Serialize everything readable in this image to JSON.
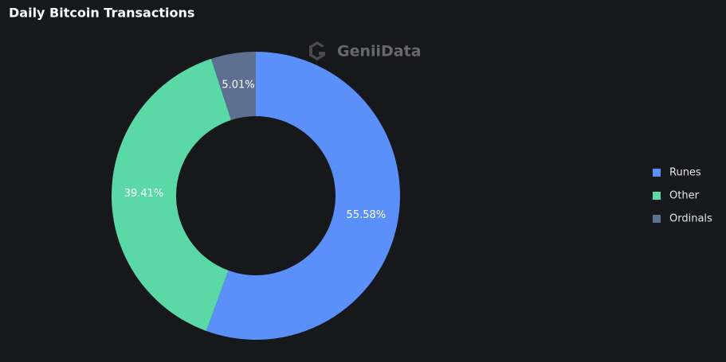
{
  "chart_data": {
    "type": "pie",
    "title": "Daily Bitcoin Transactions",
    "watermark": "GeniiData",
    "categories": [
      "Runes",
      "Other",
      "Ordinals"
    ],
    "values": [
      55.58,
      39.41,
      5.01
    ],
    "value_labels": [
      "55.58%",
      "39.41%",
      "5.01%"
    ],
    "colors": [
      "#5b8ff9",
      "#5ad8a6",
      "#5d7092"
    ],
    "legend": "right"
  }
}
